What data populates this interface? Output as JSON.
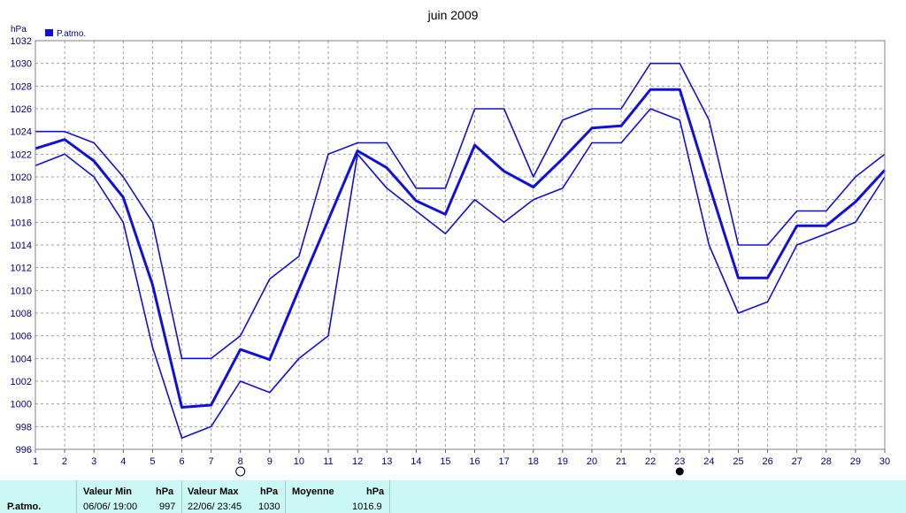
{
  "chart_data": {
    "type": "line",
    "title": "juin 2009",
    "ylabel": "hPa",
    "legend": "P.atmo.",
    "legend_position": "top-left",
    "grid": true,
    "xlim": [
      1,
      30
    ],
    "ylim": [
      996,
      1032
    ],
    "x": [
      1,
      2,
      3,
      4,
      5,
      6,
      7,
      8,
      9,
      10,
      11,
      12,
      13,
      14,
      15,
      16,
      17,
      18,
      19,
      20,
      21,
      22,
      23,
      24,
      25,
      26,
      27,
      28,
      29,
      30
    ],
    "yticks": [
      996,
      998,
      1000,
      1002,
      1004,
      1006,
      1008,
      1010,
      1012,
      1014,
      1016,
      1018,
      1020,
      1022,
      1024,
      1026,
      1028,
      1030,
      1032
    ],
    "series": [
      {
        "role": "max",
        "values": [
          1024,
          1024,
          1023,
          1020,
          1016,
          1004,
          1004,
          1006,
          1011,
          1013,
          1022,
          1023,
          1023,
          1019,
          1019,
          1026,
          1026,
          1020,
          1025,
          1026,
          1026,
          1030,
          1030,
          1025,
          1014,
          1014,
          1017,
          1017,
          1020,
          1022
        ]
      },
      {
        "role": "mean",
        "values": [
          1022.5,
          1023.3,
          1021.4,
          1018.2,
          1010.5,
          999.7,
          999.9,
          1004.8,
          1003.9,
          1010.1,
          1016.2,
          1022.3,
          1020.8,
          1017.9,
          1016.7,
          1022.8,
          1020.5,
          1019.1,
          1021.6,
          1024.3,
          1024.5,
          1027.7,
          1027.7,
          1019.3,
          1011.1,
          1011.1,
          1015.7,
          1015.7,
          1017.8,
          1020.6
        ]
      },
      {
        "role": "min",
        "values": [
          1021,
          1022,
          1020,
          1016,
          1005,
          997,
          998,
          1002,
          1001,
          1004,
          1006,
          1022,
          1019,
          1017,
          1015,
          1018,
          1016,
          1018,
          1019,
          1023,
          1023,
          1026,
          1025,
          1014,
          1008,
          1009,
          1014,
          1015,
          1016,
          1020
        ]
      }
    ],
    "markers": [
      {
        "x": 8,
        "symbol": "new-moon-outline"
      },
      {
        "x": 23,
        "symbol": "full-moon-filled"
      }
    ]
  },
  "colors": {
    "line": "#1010dd",
    "grid": "#a0a0a0",
    "axis_text": "#000080",
    "stats_bg": "#ccf7f7"
  },
  "stats": {
    "row_label": "P.atmo.",
    "min_header": "Valeur Min",
    "max_header": "Valeur Max",
    "avg_header": "Moyenne",
    "unit": "hPa",
    "min_date": "06/06/  19:00",
    "min_value": "997",
    "max_date": "22/06/  23:45",
    "max_value": "1030",
    "avg_value": "1016.9"
  }
}
